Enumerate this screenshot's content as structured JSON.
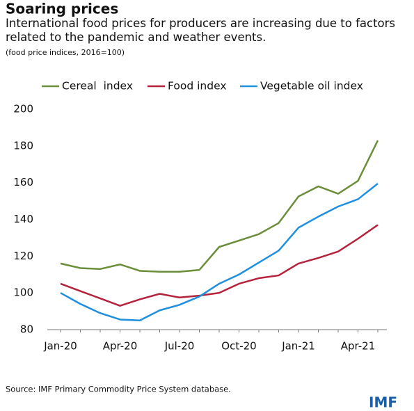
{
  "chart_data": {
    "type": "line",
    "title": "Soaring prices",
    "subtitle": "International food prices for producers are increasing due to factors related to the pandemic and weather events.",
    "note": "(food price indices, 2016=100)",
    "source": "Source: IMF Primary Commodity Price System database.",
    "logo": "IMF",
    "categories": [
      "Jan-20",
      null,
      null,
      "Apr-20",
      null,
      null,
      "Jul-20",
      null,
      null,
      "Oct-20",
      null,
      null,
      "Jan-21",
      null,
      null,
      "Apr-21",
      null
    ],
    "series": [
      {
        "name": "Cereal  index",
        "color": "#6b8e3a",
        "values": [
          116,
          113.5,
          113,
          115.5,
          112,
          111.5,
          111.5,
          112.5,
          125,
          128.5,
          132,
          138,
          152.5,
          158,
          154,
          161,
          183
        ]
      },
      {
        "name": "Food index",
        "color": "#b5223b",
        "values": [
          105,
          101,
          97,
          93,
          96.5,
          99.5,
          97.5,
          98.5,
          100,
          105,
          108,
          109.5,
          116,
          119,
          122.5,
          129.5,
          137
        ]
      },
      {
        "name": "Vegetable oil index",
        "color": "#1f8fe0",
        "values": [
          100,
          94,
          89,
          85.5,
          85,
          90.5,
          93.5,
          98,
          105,
          110,
          116.5,
          123,
          135.5,
          141.5,
          147,
          151,
          159.5
        ]
      }
    ],
    "ylim": [
      80,
      200
    ],
    "yticks": [
      80,
      100,
      120,
      140,
      160,
      180,
      200
    ],
    "legend": "top",
    "grid": false
  }
}
